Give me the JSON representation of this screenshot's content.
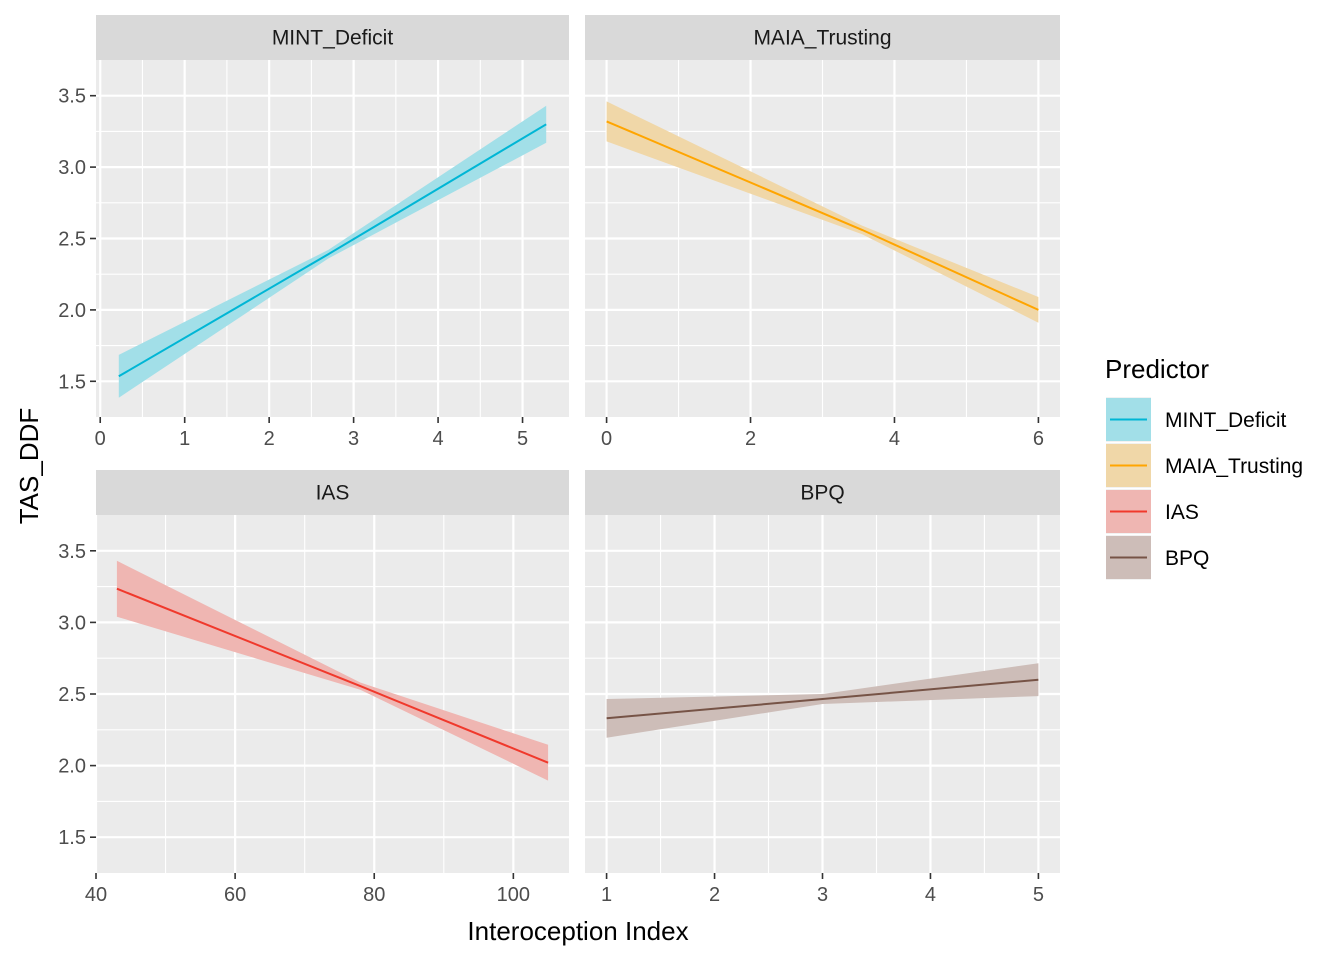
{
  "chart_data": {
    "type": "line",
    "xlabel": "Interoception Index",
    "ylabel": "TAS_DDF",
    "ylim": [
      1.25,
      3.75
    ],
    "y_ticks": [
      1.5,
      2.0,
      2.5,
      3.0,
      3.5
    ],
    "y_tick_labels": [
      "1.5",
      "2.0",
      "2.5",
      "3.0",
      "3.5"
    ],
    "grid": true,
    "legend": {
      "title": "Predictor",
      "position": "right",
      "items": [
        {
          "label": "MINT_Deficit",
          "line_color": "#00b6d5",
          "fill_color": "#a2dfe8"
        },
        {
          "label": "MAIA_Trusting",
          "line_color": "#ffa500",
          "fill_color": "#f0d7a8"
        },
        {
          "label": "IAS",
          "line_color": "#f0392c",
          "fill_color": "#efb6b2"
        },
        {
          "label": "BPQ",
          "line_color": "#765346",
          "fill_color": "#cdbdb8"
        }
      ]
    },
    "panels": [
      {
        "strip": "MINT_Deficit",
        "xlim": [
          -0.05,
          5.55
        ],
        "x_ticks": [
          0,
          1,
          2,
          3,
          4,
          5
        ],
        "x_tick_labels": [
          "0",
          "1",
          "2",
          "3",
          "4",
          "5"
        ],
        "x_minor": [
          0.5,
          1.5,
          2.5,
          3.5,
          4.5
        ],
        "line_color": "#00b6d5",
        "fill_color": "#a2dfe8",
        "x": [
          0.22,
          2.7,
          5.28
        ],
        "y": [
          1.535,
          2.39,
          3.3
        ],
        "lower": [
          1.385,
          2.36,
          3.17
        ],
        "upper": [
          1.685,
          2.42,
          3.43
        ]
      },
      {
        "strip": "MAIA_Trusting",
        "xlim": [
          -0.3,
          6.3
        ],
        "x_ticks": [
          0,
          2,
          4,
          6
        ],
        "x_tick_labels": [
          "0",
          "2",
          "4",
          "6"
        ],
        "x_minor": [
          1,
          3,
          5
        ],
        "line_color": "#ffa500",
        "fill_color": "#f0d7a8",
        "x": [
          0,
          3.55,
          6
        ],
        "y": [
          3.32,
          2.56,
          2.0
        ],
        "lower": [
          3.18,
          2.53,
          1.91
        ],
        "upper": [
          3.46,
          2.59,
          2.09
        ]
      },
      {
        "strip": "IAS",
        "xlim": [
          40,
          108
        ],
        "x_ticks": [
          40,
          60,
          80,
          100
        ],
        "x_tick_labels": [
          "40",
          "60",
          "80",
          "100"
        ],
        "x_minor": [
          50,
          70,
          90
        ],
        "line_color": "#f0392c",
        "fill_color": "#efb6b2",
        "x": [
          43,
          78,
          105
        ],
        "y": [
          3.235,
          2.555,
          2.02
        ],
        "lower": [
          3.04,
          2.53,
          1.895
        ],
        "upper": [
          3.43,
          2.58,
          2.145
        ]
      },
      {
        "strip": "BPQ",
        "xlim": [
          0.8,
          5.2
        ],
        "x_ticks": [
          1,
          2,
          3,
          4,
          5
        ],
        "x_tick_labels": [
          "1",
          "2",
          "3",
          "4",
          "5"
        ],
        "x_minor": [
          1.5,
          2.5,
          3.5,
          4.5
        ],
        "line_color": "#765346",
        "fill_color": "#cdbdb8",
        "x": [
          1,
          3,
          5
        ],
        "y": [
          2.33,
          2.465,
          2.6
        ],
        "lower": [
          2.195,
          2.43,
          2.485
        ],
        "upper": [
          2.465,
          2.5,
          2.715
        ]
      }
    ]
  }
}
